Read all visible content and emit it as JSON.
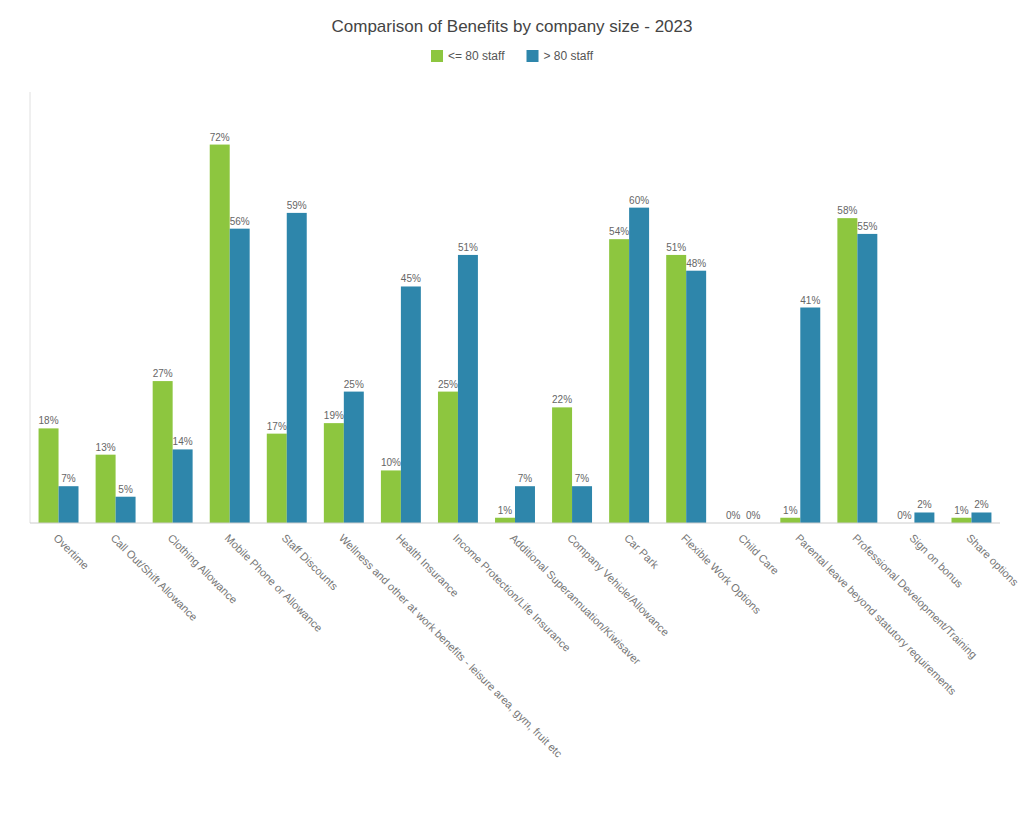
{
  "chart_data": {
    "type": "bar",
    "title": "Comparison of Benefits by company size - 2023",
    "categories": [
      "Overtime",
      "Call Out/Shift Allowance",
      "Clothing Allowance",
      "Mobile Phone or Allowance",
      "Staff Discounts",
      "Wellness and other at work benefits - leisure area, gym, fruit etc",
      "Health Insurance",
      "Income Protection/Life Insurance",
      "Additional Superannuation/Kiwisaver",
      "Company Vehicle/Allowance",
      "Car Park",
      "Flexible Work Options",
      "Child Care",
      "Parental leave beyond statutory requirements",
      "Professional Development/Training",
      "Sign on bonus",
      "Share options"
    ],
    "series": [
      {
        "name": "<= 80 staff",
        "color": "#8dc63f",
        "values": [
          18,
          13,
          27,
          72,
          17,
          19,
          10,
          25,
          1,
          22,
          54,
          51,
          0,
          1,
          58,
          0,
          1
        ],
        "value_labels": [
          "18%",
          "13%",
          "27%",
          "72%",
          "17%",
          "19%",
          "10%",
          "25%",
          "1%",
          "22%",
          "54%",
          "51%",
          "0%",
          "1%",
          "58%",
          "0%",
          "1%"
        ]
      },
      {
        "name": "> 80 staff",
        "color": "#2e86ab",
        "values": [
          7,
          5,
          14,
          56,
          59,
          25,
          45,
          51,
          7,
          7,
          60,
          48,
          0,
          41,
          55,
          2,
          2
        ],
        "value_labels": [
          "7%",
          "5%",
          "14%",
          "56%",
          "59%",
          "25%",
          "45%",
          "51%",
          "7%",
          "7%",
          "60%",
          "48%",
          "0%",
          "41%",
          "55%",
          "2%",
          "2%"
        ]
      }
    ],
    "ylim": [
      0,
      82
    ],
    "data_labels": true,
    "tick_labels": "x",
    "grid": false,
    "legend": "top"
  }
}
